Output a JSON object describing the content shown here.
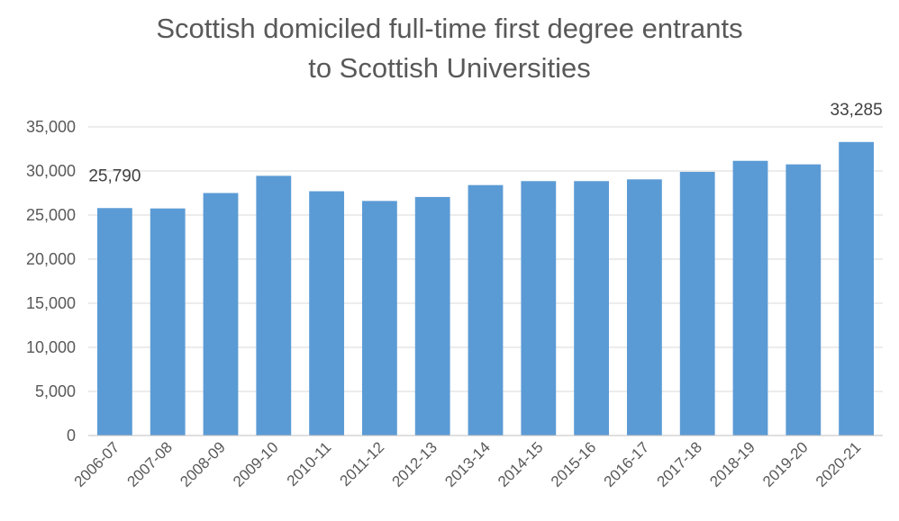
{
  "chart_data": {
    "type": "bar",
    "title_lines": [
      "Scottish domiciled full-time first degree entrants",
      "to Scottish Universities"
    ],
    "xlabel": "",
    "ylabel": "",
    "categories": [
      "2006-07",
      "2007-08",
      "2008-09",
      "2009-10",
      "2010-11",
      "2011-12",
      "2012-13",
      "2013-14",
      "2014-15",
      "2015-16",
      "2016-17",
      "2017-18",
      "2018-19",
      "2019-20",
      "2020-21"
    ],
    "values": [
      25790,
      25750,
      27500,
      29450,
      27700,
      26600,
      27050,
      28400,
      28850,
      28850,
      29050,
      29900,
      31150,
      30750,
      33285
    ],
    "ylim": [
      0,
      35000
    ],
    "yticks": [
      0,
      5000,
      10000,
      15000,
      20000,
      25000,
      30000,
      35000
    ],
    "ytick_labels": [
      "0",
      "5,000",
      "10,000",
      "15,000",
      "20,000",
      "25,000",
      "30,000",
      "35,000"
    ],
    "data_labels": [
      {
        "index": 0,
        "text": "25,790"
      },
      {
        "index": 14,
        "text": "33,285"
      }
    ],
    "grid": true,
    "legend": "none",
    "bar_color": "#5b9bd5"
  }
}
